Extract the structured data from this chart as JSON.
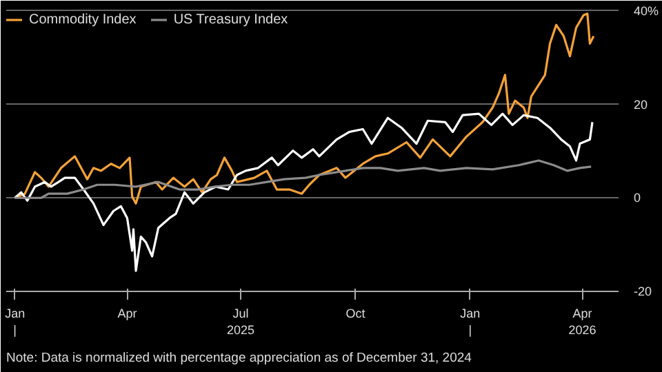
{
  "chart_data": {
    "type": "line",
    "xlim": [
      "2024-12-25",
      "2026-04-30"
    ],
    "ylim": [
      -20,
      41
    ],
    "xticks": [
      {
        "value": "2025-01-01",
        "label": "Jan\n|"
      },
      {
        "value": "2025-04-01",
        "label": "Apr"
      },
      {
        "value": "2025-07-01",
        "label": "Jul\n2025"
      },
      {
        "value": "2025-10-01",
        "label": "Oct"
      },
      {
        "value": "2026-01-01",
        "label": "Jan\n|"
      },
      {
        "value": "2026-04-01",
        "label": "Apr\n2026"
      }
    ],
    "yticks": [
      -20,
      0,
      20,
      {
        "value": 40,
        "label": "40%"
      }
    ],
    "grid": "y",
    "legend": "top left",
    "annotations": [
      "Note: Data is normalized with percentage appreciation as of December 31, 2024"
    ],
    "series": [
      {
        "name": "Commodity Index",
        "color": "#f5a238",
        "x": [
          "2025-01-01",
          "2025-01-09",
          "2025-01-17",
          "2025-01-22",
          "2025-01-28",
          "2025-02-07",
          "2025-02-18",
          "2025-02-28",
          "2025-03-05",
          "2025-03-11",
          "2025-03-19",
          "2025-03-26",
          "2025-04-03",
          "2025-04-05",
          "2025-04-08",
          "2025-04-12",
          "2025-04-24",
          "2025-04-29",
          "2025-05-08",
          "2025-05-17",
          "2025-05-24",
          "2025-05-31",
          "2025-06-07",
          "2025-06-12",
          "2025-06-18",
          "2025-06-24",
          "2025-06-28",
          "2025-07-12",
          "2025-07-22",
          "2025-07-30",
          "2025-08-09",
          "2025-08-19",
          "2025-08-25",
          "2025-09-02",
          "2025-09-16",
          "2025-09-23",
          "2025-10-07",
          "2025-10-17",
          "2025-10-27",
          "2025-11-11",
          "2025-11-22",
          "2025-12-02",
          "2025-12-16",
          "2025-12-29",
          "2026-01-11",
          "2026-01-19",
          "2026-01-24",
          "2026-01-29",
          "2026-02-01",
          "2026-02-06",
          "2026-02-13",
          "2026-02-16",
          "2026-02-19",
          "2026-03-02",
          "2026-03-06",
          "2026-03-11",
          "2026-03-17",
          "2026-03-22",
          "2026-03-27",
          "2026-04-02",
          "2026-04-05",
          "2026-04-07",
          "2026-04-10"
        ],
        "values": [
          0,
          0.9,
          5.5,
          4.3,
          2.4,
          6.4,
          8.9,
          4.0,
          6.4,
          5.8,
          7.3,
          6.4,
          8.6,
          0.3,
          -1.2,
          2.4,
          3.4,
          1.8,
          4.3,
          2.4,
          4.0,
          1.2,
          4.0,
          4.9,
          8.6,
          5.8,
          3.4,
          4.3,
          5.8,
          1.8,
          1.8,
          0.9,
          2.8,
          4.9,
          6.4,
          4.3,
          7.3,
          8.9,
          9.5,
          11.9,
          8.6,
          12.5,
          8.9,
          13.1,
          16.2,
          19.3,
          22.3,
          26.3,
          18.0,
          20.8,
          19.3,
          17.1,
          21.7,
          26.3,
          33.0,
          37.0,
          34.6,
          30.3,
          36.4,
          39.1,
          39.4,
          33.0,
          34.6
        ]
      },
      {
        "color": "#ffffff",
        "x": [
          "2025-01-01",
          "2025-01-06",
          "2025-01-11",
          "2025-01-17",
          "2025-01-25",
          "2025-01-30",
          "2025-02-05",
          "2025-02-10",
          "2025-02-18",
          "2025-02-25",
          "2025-03-05",
          "2025-03-13",
          "2025-03-21",
          "2025-03-27",
          "2025-04-01",
          "2025-04-05",
          "2025-04-06",
          "2025-04-08",
          "2025-04-12",
          "2025-04-16",
          "2025-04-21",
          "2025-04-26",
          "2025-05-05",
          "2025-05-10",
          "2025-05-17",
          "2025-05-24",
          "2025-06-02",
          "2025-06-11",
          "2025-06-21",
          "2025-06-28",
          "2025-07-05",
          "2025-07-15",
          "2025-07-26",
          "2025-07-31",
          "2025-08-12",
          "2025-08-19",
          "2025-08-28",
          "2025-09-02",
          "2025-09-16",
          "2025-09-26",
          "2025-10-07",
          "2025-10-14",
          "2025-10-27",
          "2025-11-07",
          "2025-11-19",
          "2025-11-28",
          "2025-12-12",
          "2025-12-18",
          "2025-12-26",
          "2026-01-08",
          "2026-01-18",
          "2026-01-27",
          "2026-02-04",
          "2026-02-13",
          "2026-02-24",
          "2026-03-06",
          "2026-03-15",
          "2026-03-22",
          "2026-03-27",
          "2026-03-30",
          "2026-04-07",
          "2026-04-09"
        ],
        "values": [
          0,
          1.2,
          -0.6,
          2.4,
          3.4,
          2.4,
          3.4,
          4.3,
          4.3,
          1.8,
          -1.2,
          -5.8,
          -2.8,
          -1.8,
          -4.3,
          -11.3,
          -6.7,
          -15.6,
          -8.3,
          -9.5,
          -12.5,
          -6.4,
          -4.3,
          -3.4,
          1.2,
          -1.2,
          1.2,
          2.4,
          1.8,
          4.9,
          5.8,
          6.4,
          8.6,
          7.0,
          10.1,
          8.6,
          10.4,
          8.9,
          12.5,
          14.1,
          14.7,
          11.6,
          17.1,
          15.0,
          11.6,
          16.5,
          16.2,
          14.1,
          17.7,
          18.0,
          15.6,
          18.0,
          15.6,
          17.7,
          17.1,
          15.0,
          12.5,
          11.0,
          8.0,
          11.6,
          12.5,
          16.2
        ]
      },
      {
        "name": "US Treasury Index",
        "color": "#8c8c8c",
        "x": [
          "2025-01-01",
          "2025-01-22",
          "2025-01-28",
          "2025-02-12",
          "2025-02-25",
          "2025-03-08",
          "2025-03-22",
          "2025-04-08",
          "2025-04-26",
          "2025-05-13",
          "2025-05-28",
          "2025-06-10",
          "2025-06-24",
          "2025-07-08",
          "2025-07-22",
          "2025-08-05",
          "2025-08-22",
          "2025-09-02",
          "2025-09-23",
          "2025-10-07",
          "2025-10-21",
          "2025-11-04",
          "2025-11-25",
          "2025-12-08",
          "2025-12-29",
          "2026-01-19",
          "2026-02-09",
          "2026-02-25",
          "2026-03-09",
          "2026-03-20",
          "2026-03-30",
          "2026-04-08"
        ],
        "values": [
          0,
          0,
          0.9,
          0.9,
          1.8,
          2.8,
          2.8,
          2.4,
          3.4,
          1.8,
          1.8,
          2.4,
          2.8,
          2.8,
          3.4,
          4.0,
          4.3,
          4.9,
          5.8,
          6.4,
          6.4,
          5.8,
          6.4,
          5.8,
          6.4,
          6.1,
          7.0,
          8.0,
          7.0,
          5.8,
          6.4,
          6.7
        ]
      }
    ]
  }
}
